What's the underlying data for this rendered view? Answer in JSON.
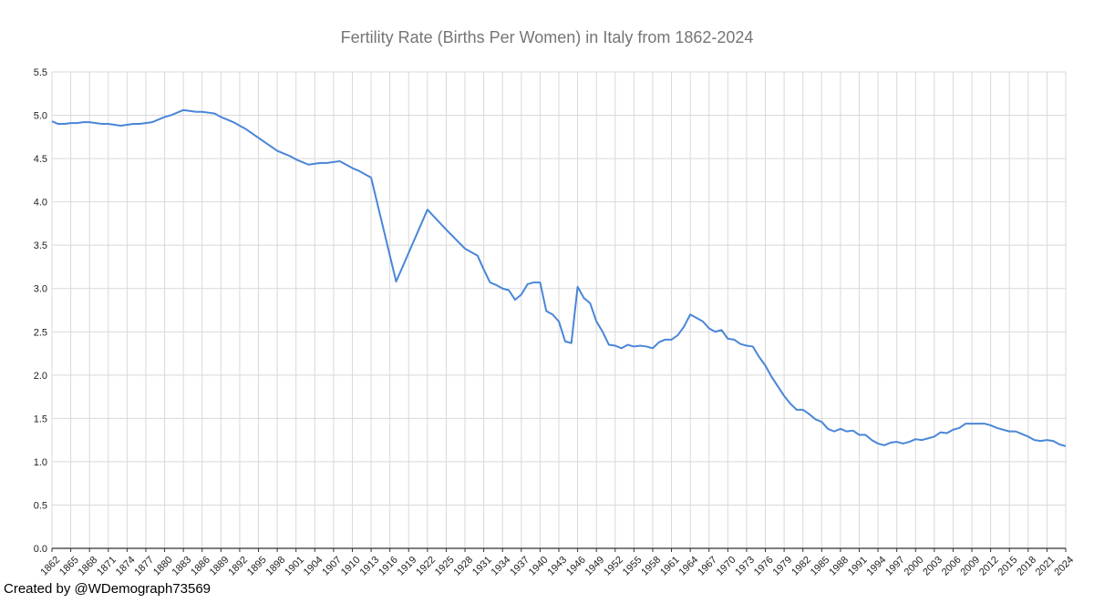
{
  "credit": "Created by @WDemograph73569",
  "colors": {
    "line": "#4a86d8",
    "grid": "#d9d9d9",
    "axis": "#333333",
    "title": "#757575"
  },
  "chart_data": {
    "type": "line",
    "title": "Fertility Rate (Births Per Women) in Italy from 1862-2024",
    "xlabel": "",
    "ylabel": "",
    "xlim": [
      1862,
      2024
    ],
    "ylim": [
      0,
      5.5
    ],
    "yticks": [
      "0.0",
      "0.5",
      "1.0",
      "1.5",
      "2.0",
      "2.5",
      "3.0",
      "3.5",
      "4.0",
      "4.5",
      "5.0",
      "5.5"
    ],
    "xticks": [
      "1862",
      "1865",
      "1868",
      "1871",
      "1874",
      "1877",
      "1880",
      "1883",
      "1886",
      "1889",
      "1892",
      "1895",
      "1898",
      "1901",
      "1904",
      "1907",
      "1910",
      "1913",
      "1916",
      "1919",
      "1922",
      "1925",
      "1928",
      "1931",
      "1934",
      "1937",
      "1940",
      "1943",
      "1946",
      "1949",
      "1952",
      "1955",
      "1958",
      "1961",
      "1964",
      "1967",
      "1970",
      "1973",
      "1976",
      "1979",
      "1982",
      "1985",
      "1988",
      "1991",
      "1994",
      "1997",
      "2000",
      "2003",
      "2006",
      "2009",
      "2012",
      "2015",
      "2018",
      "2021",
      "2024"
    ],
    "grid": true,
    "legend": "none",
    "series": [
      {
        "x": [
          1862,
          1863,
          1864,
          1865,
          1866,
          1867,
          1868,
          1869,
          1870,
          1871,
          1872,
          1873,
          1874,
          1875,
          1876,
          1877,
          1878,
          1879,
          1880,
          1881,
          1882,
          1883,
          1884,
          1885,
          1886,
          1887,
          1888,
          1889,
          1890,
          1891,
          1892,
          1893,
          1894,
          1895,
          1896,
          1897,
          1898,
          1899,
          1900,
          1901,
          1902,
          1903,
          1904,
          1905,
          1906,
          1907,
          1908,
          1909,
          1910,
          1911,
          1912,
          1913,
          1917,
          1922,
          1925,
          1928,
          1930,
          1931,
          1932,
          1933,
          1934,
          1935,
          1936,
          1937,
          1938,
          1939,
          1940,
          1941,
          1942,
          1943,
          1944,
          1945,
          1946,
          1947,
          1948,
          1949,
          1950,
          1951,
          1952,
          1953,
          1954,
          1955,
          1956,
          1957,
          1958,
          1959,
          1960,
          1961,
          1962,
          1963,
          1964,
          1965,
          1966,
          1967,
          1968,
          1969,
          1970,
          1971,
          1972,
          1973,
          1974,
          1975,
          1976,
          1977,
          1978,
          1979,
          1980,
          1981,
          1982,
          1983,
          1984,
          1985,
          1986,
          1987,
          1988,
          1989,
          1990,
          1991,
          1992,
          1993,
          1994,
          1995,
          1996,
          1997,
          1998,
          1999,
          2000,
          2001,
          2002,
          2003,
          2004,
          2005,
          2006,
          2007,
          2008,
          2009,
          2010,
          2011,
          2012,
          2013,
          2014,
          2015,
          2016,
          2017,
          2018,
          2019,
          2020,
          2021,
          2022,
          2023,
          2024
        ],
        "y": [
          4.93,
          4.9,
          4.9,
          4.91,
          4.91,
          4.92,
          4.92,
          4.91,
          4.9,
          4.9,
          4.89,
          4.88,
          4.89,
          4.9,
          4.9,
          4.91,
          4.92,
          4.95,
          4.98,
          5.0,
          5.03,
          5.06,
          5.05,
          5.04,
          5.04,
          5.03,
          5.02,
          4.98,
          4.95,
          4.92,
          4.88,
          4.84,
          4.79,
          4.74,
          4.69,
          4.64,
          4.59,
          4.56,
          4.53,
          4.49,
          4.46,
          4.43,
          4.44,
          4.45,
          4.45,
          4.46,
          4.47,
          4.43,
          4.39,
          4.36,
          4.32,
          4.28,
          3.08,
          3.91,
          3.68,
          3.46,
          3.38,
          3.22,
          3.07,
          3.04,
          3.0,
          2.98,
          2.87,
          2.93,
          3.05,
          3.07,
          3.07,
          2.74,
          2.7,
          2.62,
          2.39,
          2.37,
          3.02,
          2.89,
          2.83,
          2.62,
          2.5,
          2.35,
          2.34,
          2.31,
          2.35,
          2.33,
          2.34,
          2.33,
          2.31,
          2.38,
          2.41,
          2.41,
          2.46,
          2.56,
          2.7,
          2.66,
          2.62,
          2.54,
          2.5,
          2.52,
          2.42,
          2.41,
          2.36,
          2.34,
          2.33,
          2.21,
          2.11,
          1.98,
          1.87,
          1.76,
          1.67,
          1.6,
          1.6,
          1.55,
          1.49,
          1.46,
          1.38,
          1.35,
          1.38,
          1.35,
          1.36,
          1.31,
          1.31,
          1.25,
          1.21,
          1.19,
          1.22,
          1.23,
          1.21,
          1.23,
          1.26,
          1.25,
          1.27,
          1.29,
          1.34,
          1.33,
          1.37,
          1.39,
          1.44,
          1.44,
          1.44,
          1.44,
          1.42,
          1.39,
          1.37,
          1.35,
          1.35,
          1.32,
          1.29,
          1.25,
          1.24,
          1.25,
          1.24,
          1.2,
          1.18
        ]
      }
    ]
  }
}
